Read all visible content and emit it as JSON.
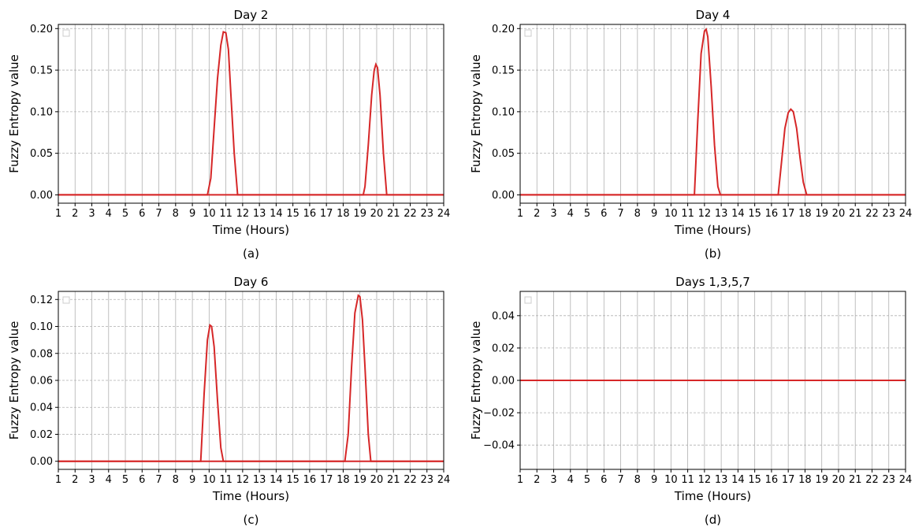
{
  "chart_data": [
    {
      "type": "line",
      "title": "Day 2",
      "xlabel": "Time (Hours)",
      "ylabel": "Fuzzy Entropy value",
      "caption": "(a)",
      "xlim": [
        1,
        24
      ],
      "ylim": [
        -0.01,
        0.205
      ],
      "xticks": [
        1,
        2,
        3,
        4,
        5,
        6,
        7,
        8,
        9,
        10,
        11,
        12,
        13,
        14,
        15,
        16,
        17,
        18,
        19,
        20,
        21,
        22,
        23,
        24
      ],
      "yticks": [
        0.0,
        0.05,
        0.1,
        0.15,
        0.2
      ],
      "ytick_labels": [
        "0.00",
        "0.05",
        "0.10",
        "0.15",
        "0.20"
      ],
      "grid": true,
      "color": "#d62728",
      "series": [
        {
          "x": [
            1,
            9.9,
            10.1,
            10.3,
            10.5,
            10.7,
            10.85,
            11.0,
            11.15,
            11.3,
            11.5,
            11.7,
            24
          ],
          "y": [
            0,
            0,
            0.02,
            0.08,
            0.14,
            0.18,
            0.196,
            0.195,
            0.175,
            0.12,
            0.05,
            0,
            0
          ]
        },
        {
          "x": [
            1,
            19.2,
            19.3,
            19.5,
            19.7,
            19.85,
            19.95,
            20.05,
            20.2,
            20.4,
            20.6,
            24
          ],
          "y": [
            0,
            0,
            0.01,
            0.06,
            0.12,
            0.15,
            0.157,
            0.153,
            0.12,
            0.05,
            0,
            0
          ]
        }
      ]
    },
    {
      "type": "line",
      "title": "Day 4",
      "xlabel": "Time (Hours)",
      "ylabel": "Fuzzy Entropy value",
      "caption": "(b)",
      "xlim": [
        1,
        24
      ],
      "ylim": [
        -0.01,
        0.205
      ],
      "xticks": [
        1,
        2,
        3,
        4,
        5,
        6,
        7,
        8,
        9,
        10,
        11,
        12,
        13,
        14,
        15,
        16,
        17,
        18,
        19,
        20,
        21,
        22,
        23,
        24
      ],
      "yticks": [
        0.0,
        0.05,
        0.1,
        0.15,
        0.2
      ],
      "ytick_labels": [
        "0.00",
        "0.05",
        "0.10",
        "0.15",
        "0.20"
      ],
      "grid": true,
      "color": "#d62728",
      "series": [
        {
          "x": [
            1,
            11.4,
            11.6,
            11.8,
            12.0,
            12.1,
            12.2,
            12.4,
            12.6,
            12.8,
            12.95,
            24
          ],
          "y": [
            0,
            0,
            0.09,
            0.17,
            0.197,
            0.199,
            0.19,
            0.13,
            0.06,
            0.01,
            0,
            0
          ]
        },
        {
          "x": [
            1,
            16.4,
            16.6,
            16.8,
            17.0,
            17.15,
            17.3,
            17.5,
            17.7,
            17.9,
            18.1,
            24
          ],
          "y": [
            0,
            0,
            0.04,
            0.08,
            0.099,
            0.103,
            0.1,
            0.08,
            0.045,
            0.015,
            0,
            0
          ]
        }
      ]
    },
    {
      "type": "line",
      "title": "Day 6",
      "xlabel": "Time (Hours)",
      "ylabel": "Fuzzy Entropy value",
      "caption": "(c)",
      "xlim": [
        1,
        24
      ],
      "ylim": [
        -0.006,
        0.126
      ],
      "xticks": [
        1,
        2,
        3,
        4,
        5,
        6,
        7,
        8,
        9,
        10,
        11,
        12,
        13,
        14,
        15,
        16,
        17,
        18,
        19,
        20,
        21,
        22,
        23,
        24
      ],
      "yticks": [
        0.0,
        0.02,
        0.04,
        0.06,
        0.08,
        0.1,
        0.12
      ],
      "ytick_labels": [
        "0.00",
        "0.02",
        "0.04",
        "0.06",
        "0.08",
        "0.10",
        "0.12"
      ],
      "grid": true,
      "color": "#d62728",
      "series": [
        {
          "x": [
            1,
            9.5,
            9.7,
            9.9,
            10.05,
            10.15,
            10.3,
            10.5,
            10.7,
            10.85,
            24
          ],
          "y": [
            0,
            0,
            0.05,
            0.09,
            0.101,
            0.1,
            0.085,
            0.045,
            0.01,
            0,
            0
          ]
        },
        {
          "x": [
            1,
            18.1,
            18.3,
            18.5,
            18.7,
            18.9,
            19.0,
            19.15,
            19.3,
            19.5,
            19.65,
            24
          ],
          "y": [
            0,
            0,
            0.02,
            0.07,
            0.11,
            0.123,
            0.122,
            0.105,
            0.07,
            0.02,
            0,
            0
          ]
        }
      ]
    },
    {
      "type": "line",
      "title": "Days 1,3,5,7",
      "xlabel": "Time (Hours)",
      "ylabel": "Fuzzy Entropy value",
      "caption": "(d)",
      "xlim": [
        1,
        24
      ],
      "ylim": [
        -0.055,
        0.055
      ],
      "xticks": [
        1,
        2,
        3,
        4,
        5,
        6,
        7,
        8,
        9,
        10,
        11,
        12,
        13,
        14,
        15,
        16,
        17,
        18,
        19,
        20,
        21,
        22,
        23,
        24
      ],
      "yticks": [
        -0.04,
        -0.02,
        0.0,
        0.02,
        0.04
      ],
      "ytick_labels": [
        "−0.04",
        "−0.02",
        "0.00",
        "0.02",
        "0.04"
      ],
      "grid": true,
      "color": "#d62728",
      "series": [
        {
          "x": [
            1,
            24
          ],
          "y": [
            0,
            0
          ]
        }
      ]
    }
  ]
}
